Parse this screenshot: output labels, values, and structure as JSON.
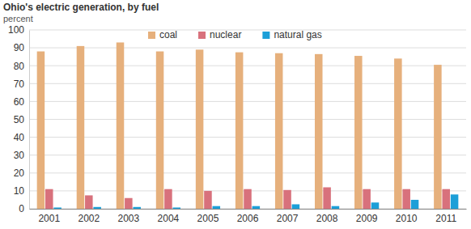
{
  "chart_data": {
    "type": "bar",
    "title": "Ohio's electric generation, by fuel",
    "subtitle": "percent",
    "categories": [
      "2001",
      "2002",
      "2003",
      "2004",
      "2005",
      "2006",
      "2007",
      "2008",
      "2009",
      "2010",
      "2011"
    ],
    "series": [
      {
        "name": "coal",
        "color": "#e6b07c",
        "values": [
          88,
          91,
          93,
          88,
          89,
          87.5,
          87,
          86.5,
          85.5,
          84,
          80.5
        ]
      },
      {
        "name": "nuclear",
        "color": "#d8717c",
        "values": [
          11,
          7.5,
          6,
          11,
          10,
          11,
          10.5,
          12,
          11,
          11,
          11
        ]
      },
      {
        "name": "natural gas",
        "color": "#1c9fd8",
        "values": [
          0.7,
          1,
          1,
          0.7,
          1.5,
          1.5,
          2.5,
          1.5,
          3.5,
          5,
          8
        ]
      }
    ],
    "ylim": [
      0,
      100
    ],
    "yticks": [
      0,
      10,
      20,
      30,
      40,
      50,
      60,
      70,
      80,
      90,
      100
    ],
    "grid": true,
    "legend": "top"
  }
}
